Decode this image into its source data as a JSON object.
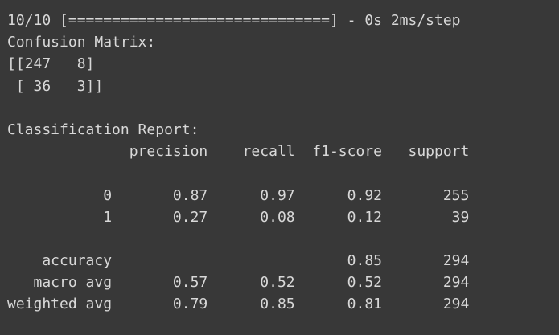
{
  "output": {
    "lines": [
      "10/10 [==============================] - 0s 2ms/step",
      "Confusion Matrix:",
      "[[247   8]",
      " [ 36   3]]",
      "",
      "Classification Report:",
      "              precision    recall  f1-score   support",
      "",
      "           0       0.87      0.97      0.92       255",
      "           1       0.27      0.08      0.12        39",
      "",
      "    accuracy                           0.85       294",
      "   macro avg       0.57      0.52      0.52       294",
      "weighted avg       0.79      0.85      0.81       294"
    ]
  }
}
